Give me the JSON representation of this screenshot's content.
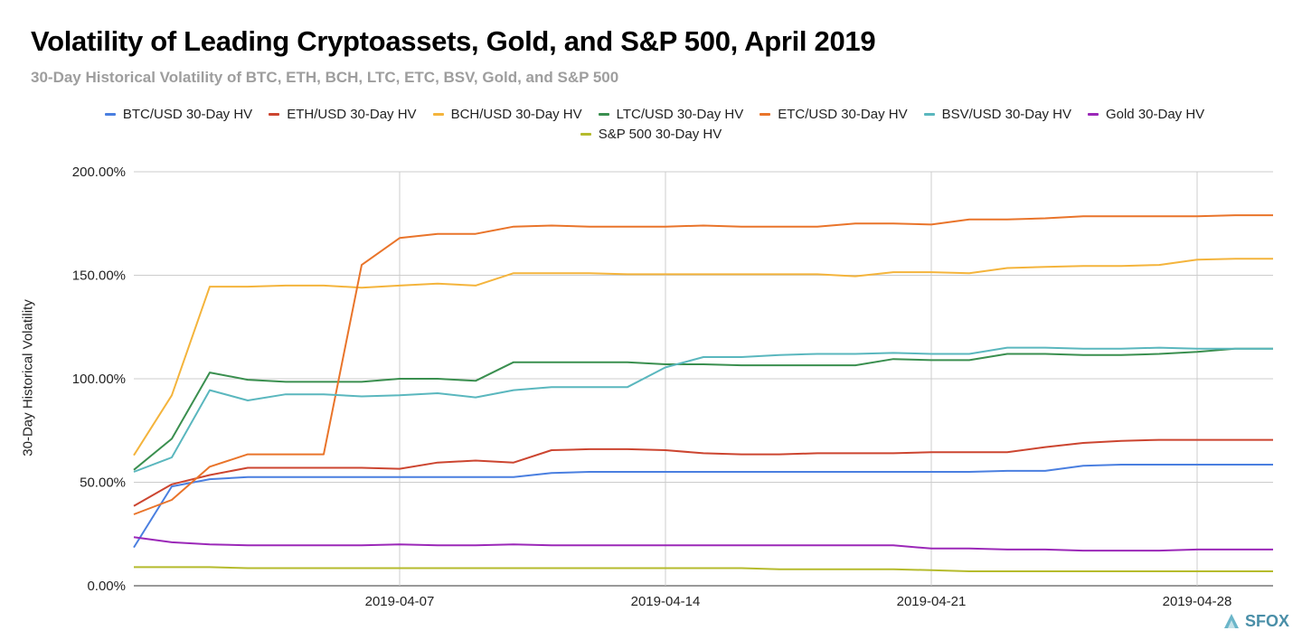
{
  "title": "Volatility of Leading Cryptoassets, Gold, and S&P 500, April 2019",
  "subtitle": "30-Day Historical Volatility of BTC, ETH, BCH, LTC, ETC, BSV, Gold, and S&P 500",
  "logo_text": "SFOX",
  "chart_data": {
    "type": "line",
    "title": "Volatility of Leading Cryptoassets, Gold, and S&P 500, April 2019",
    "subtitle": "30-Day Historical Volatility of BTC, ETH, BCH, LTC, ETC, BSV, Gold, and S&P 500",
    "xlabel": "",
    "ylabel": "30-Day Historical Volatility",
    "x": [
      "2019-03-31",
      "2019-04-01",
      "2019-04-02",
      "2019-04-03",
      "2019-04-04",
      "2019-04-05",
      "2019-04-06",
      "2019-04-07",
      "2019-04-08",
      "2019-04-09",
      "2019-04-10",
      "2019-04-11",
      "2019-04-12",
      "2019-04-13",
      "2019-04-14",
      "2019-04-15",
      "2019-04-16",
      "2019-04-17",
      "2019-04-18",
      "2019-04-19",
      "2019-04-20",
      "2019-04-21",
      "2019-04-22",
      "2019-04-23",
      "2019-04-24",
      "2019-04-25",
      "2019-04-26",
      "2019-04-27",
      "2019-04-28",
      "2019-04-29",
      "2019-04-30"
    ],
    "xticks": [
      "2019-04-07",
      "2019-04-14",
      "2019-04-21",
      "2019-04-28"
    ],
    "yticks": [
      "0.00%",
      "50.00%",
      "100.00%",
      "150.00%",
      "200.00%"
    ],
    "ylim": [
      0,
      200
    ],
    "grid": true,
    "legend_position": "top",
    "series": [
      {
        "name": "BTC/USD 30-Day HV",
        "color": "#4a7fe0",
        "values": [
          18.5,
          48,
          51.5,
          52.5,
          52.5,
          52.5,
          52.5,
          52.5,
          52.5,
          52.5,
          52.5,
          54.5,
          55,
          55,
          55,
          55,
          55,
          55,
          55,
          55,
          55,
          55,
          55,
          55.5,
          55.5,
          58,
          58.5,
          58.5,
          58.5,
          58.5,
          58.5
        ]
      },
      {
        "name": "ETH/USD 30-Day HV",
        "color": "#cc4530",
        "values": [
          38.5,
          49,
          53.5,
          57,
          57,
          57,
          57,
          56.5,
          59.5,
          60.5,
          59.5,
          65.5,
          66,
          66,
          65.5,
          64,
          63.5,
          63.5,
          64,
          64,
          64,
          64.5,
          64.5,
          64.5,
          67,
          69,
          70,
          70.5,
          70.5,
          70.5,
          70.5
        ]
      },
      {
        "name": "BCH/USD 30-Day HV",
        "color": "#f4b43c",
        "values": [
          63,
          92,
          144.5,
          144.5,
          145,
          145,
          144,
          145,
          146,
          145,
          151,
          151,
          151,
          150.5,
          150.5,
          150.5,
          150.5,
          150.5,
          150.5,
          149.5,
          151.5,
          151.5,
          151,
          153.5,
          154,
          154.5,
          154.5,
          155,
          157.5,
          158,
          158
        ]
      },
      {
        "name": "LTC/USD 30-Day HV",
        "color": "#3a8f4f",
        "values": [
          56,
          71,
          103,
          99.5,
          98.5,
          98.5,
          98.5,
          100,
          100,
          99,
          108,
          108,
          108,
          108,
          107,
          107,
          106.5,
          106.5,
          106.5,
          106.5,
          109.5,
          109,
          109,
          112,
          112,
          111.5,
          111.5,
          112,
          113,
          114.5,
          114.5
        ]
      },
      {
        "name": "ETC/USD 30-Day HV",
        "color": "#e9742a",
        "values": [
          34.5,
          41.5,
          57.5,
          63.5,
          63.5,
          63.5,
          155,
          168,
          170,
          170,
          173.5,
          174,
          173.5,
          173.5,
          173.5,
          174,
          173.5,
          173.5,
          173.5,
          175,
          175,
          174.5,
          177,
          177,
          177.5,
          178.5,
          178.5,
          178.5,
          178.5,
          179,
          179
        ]
      },
      {
        "name": "BSV/USD 30-Day HV",
        "color": "#5ab7be",
        "values": [
          55,
          62,
          94.5,
          89.5,
          92.5,
          92.5,
          91.5,
          92,
          93,
          91,
          94.5,
          96,
          96,
          96,
          105.5,
          110.5,
          110.5,
          111.5,
          112,
          112,
          112.5,
          112,
          112,
          115,
          115,
          114.5,
          114.5,
          115,
          114.5,
          114.5,
          114.5
        ]
      },
      {
        "name": "Gold 30-Day HV",
        "color": "#9b28b8",
        "values": [
          23.5,
          21,
          20,
          19.5,
          19.5,
          19.5,
          19.5,
          20,
          19.5,
          19.5,
          20,
          19.5,
          19.5,
          19.5,
          19.5,
          19.5,
          19.5,
          19.5,
          19.5,
          19.5,
          19.5,
          18,
          18,
          17.5,
          17.5,
          17,
          17,
          17,
          17.5,
          17.5,
          17.5
        ]
      },
      {
        "name": "S&P 500 30-Day HV",
        "color": "#b5bb2c",
        "values": [
          9,
          9,
          9,
          8.5,
          8.5,
          8.5,
          8.5,
          8.5,
          8.5,
          8.5,
          8.5,
          8.5,
          8.5,
          8.5,
          8.5,
          8.5,
          8.5,
          8,
          8,
          8,
          8,
          7.5,
          7,
          7,
          7,
          7,
          7,
          7,
          7,
          7,
          7
        ]
      }
    ]
  }
}
